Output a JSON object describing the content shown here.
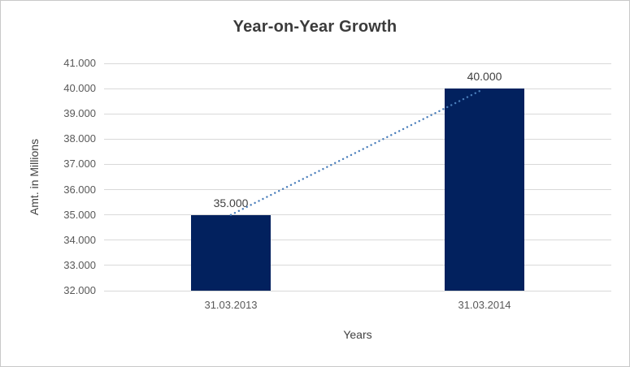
{
  "chart_data": {
    "type": "bar",
    "title": "Year-on-Year Growth",
    "xlabel": "Years",
    "ylabel": "Amt. in Millions",
    "categories": [
      "31.03.2013",
      "31.03.2014"
    ],
    "values": [
      35000,
      40000
    ],
    "data_labels": [
      "35.000",
      "40.000"
    ],
    "ylim": [
      32000,
      41000
    ],
    "ytick_step": 1000,
    "ytick_labels": [
      "32.000",
      "33.000",
      "34.000",
      "35.000",
      "36.000",
      "37.000",
      "38.000",
      "39.000",
      "40.000",
      "41.000"
    ],
    "grid": true,
    "legend": false,
    "trendline": {
      "style": "dotted",
      "color": "#4a7ebb",
      "from_value": 35000,
      "to_value": 40000
    },
    "colors": {
      "bar": "#02215e",
      "trendline": "#4a7ebb",
      "gridline": "#d9d9d9",
      "title_text": "#3b3b3b",
      "tick_text": "#595959",
      "data_label_text": "#404040",
      "axis_title_text": "#404040",
      "border": "#c9c9c9",
      "background": "#ffffff"
    }
  }
}
